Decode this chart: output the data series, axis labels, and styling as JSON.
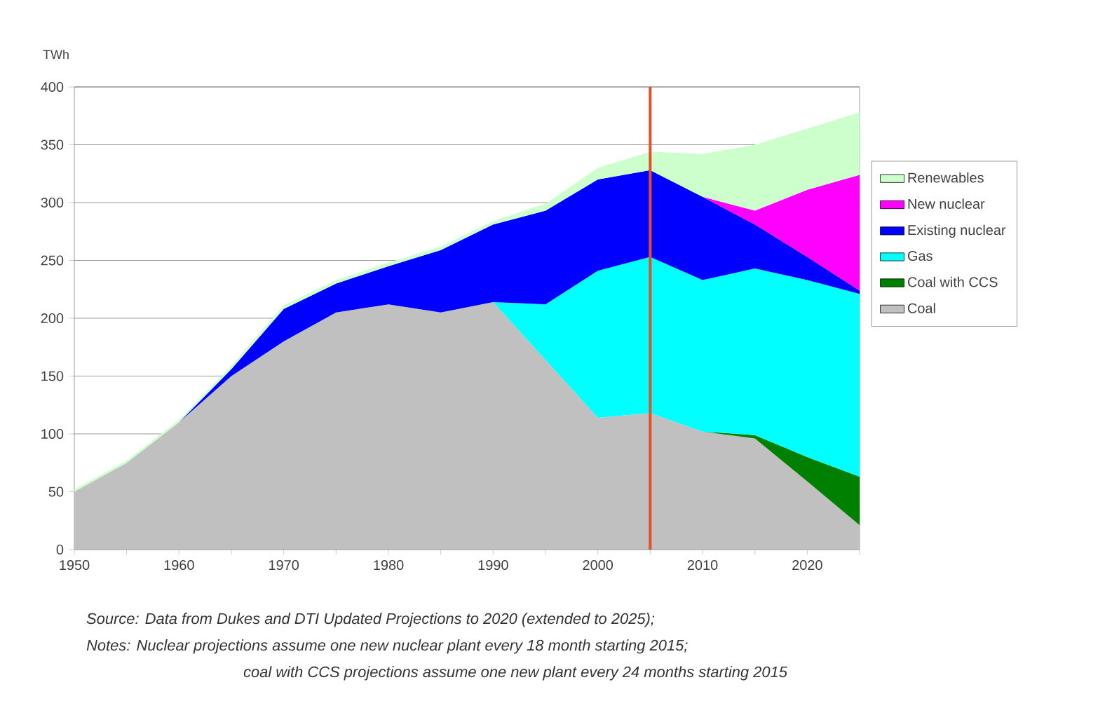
{
  "chart_data": {
    "type": "area",
    "stacked": true,
    "ylabel": "TWh",
    "x": [
      1950,
      1955,
      1960,
      1965,
      1970,
      1975,
      1980,
      1985,
      1990,
      1995,
      2000,
      2005,
      2010,
      2015,
      2020,
      2025
    ],
    "series": [
      {
        "name": "Coal",
        "color": "#c0c0c0",
        "values": [
          50,
          75,
          110,
          150,
          180,
          205,
          212,
          205,
          214,
          164,
          114,
          118,
          102,
          96,
          59,
          21
        ]
      },
      {
        "name": "Coal with CCS",
        "color": "#008000",
        "values": [
          null,
          null,
          null,
          null,
          null,
          null,
          null,
          null,
          null,
          null,
          null,
          null,
          0,
          3,
          21,
          42
        ]
      },
      {
        "name": "Gas",
        "color": "#00ffff",
        "values": [
          null,
          null,
          null,
          null,
          null,
          null,
          null,
          null,
          0,
          48,
          127,
          135,
          131,
          144,
          153,
          158
        ]
      },
      {
        "name": "Existing nuclear",
        "color": "#0000ff",
        "values": [
          null,
          null,
          0,
          6,
          28,
          25,
          33,
          54,
          67,
          81,
          79,
          75,
          72,
          38,
          20,
          3
        ]
      },
      {
        "name": "New nuclear",
        "color": "#ff00ff",
        "values": [
          null,
          null,
          null,
          null,
          null,
          null,
          null,
          null,
          null,
          null,
          null,
          null,
          0,
          12,
          58,
          100
        ]
      },
      {
        "name": "Renewables",
        "color": "#ccffcc",
        "values": [
          2,
          2,
          2,
          3,
          3,
          3,
          3,
          3,
          3,
          6,
          10,
          16,
          37,
          57,
          53,
          54
        ]
      }
    ],
    "xlim": [
      1950,
      2025
    ],
    "xticks": [
      1950,
      {
        "value": 1955,
        "label": null
      },
      1960,
      {
        "value": 1965,
        "label": null
      },
      1970,
      {
        "value": 1975,
        "label": null
      },
      1980,
      {
        "value": 1985,
        "label": null
      },
      1990,
      {
        "value": 1995,
        "label": null
      },
      2000,
      {
        "value": 2005,
        "label": null
      },
      2010,
      {
        "value": 2015,
        "label": null
      },
      2020,
      {
        "value": 2025,
        "label": null
      }
    ],
    "ylim": [
      0,
      400
    ],
    "yticks": [
      0,
      50,
      100,
      150,
      200,
      250,
      300,
      350,
      400
    ],
    "grid": "y",
    "legend": "right",
    "ref_lines": [
      {
        "axis": "x",
        "value": 2005,
        "color": "#e0502a"
      }
    ],
    "annotations": [
      "Source: Data from Dukes and DTI Updated Projections to 2020 (extended to 2025);",
      "Notes:   Nuclear projections assume one new nuclear plant every 18 month starting 2015;",
      "coal with CCS projections assume one new plant every 24 months starting 2015"
    ]
  }
}
